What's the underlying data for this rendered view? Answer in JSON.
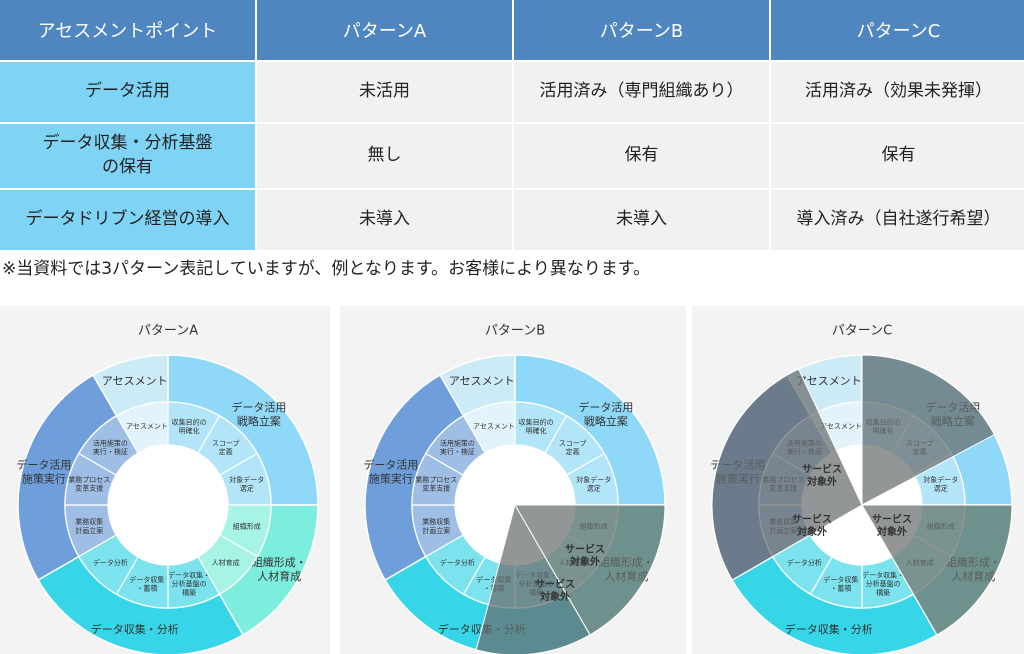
{
  "table": {
    "header": [
      "アセスメントポイント",
      "パターンA",
      "パターンB",
      "パターンC"
    ],
    "rows": [
      [
        "データ活用",
        "未活用",
        "活用済み（専門組織あり）",
        "活用済み（効果未発揮）"
      ],
      [
        "データ収集・分析基盤\nの保有",
        "無し",
        "保有",
        "保有"
      ],
      [
        "データドリブン経営の導入",
        "未導入",
        "未導入",
        "導入済み（自社遂行希望）"
      ]
    ]
  },
  "note": "※当資料では3パターン表記していますが、例となります。お客様により異なります。",
  "segments": {
    "outer": [
      "アセスメント",
      "データ活用\n戦略立案",
      "組織形成・\n人材育成",
      "データ収集・分析",
      "データ活用\n施策実行"
    ],
    "inner": [
      "アセスメント",
      "収集目的の\n明確化",
      "スコープ\n定義",
      "対象データ\n選定",
      "組織形成",
      "人材育成",
      "データ収集・\n分析基盤の\n構築",
      "データ収集\n・蓄積",
      "データ分析",
      "業務収集\n計画立案",
      "業務プロセス\n変革支援",
      "活用施策の\n実行・検証"
    ],
    "excluded_label": "サービス\n対象外"
  },
  "diagrams": [
    {
      "title": "パターンA"
    },
    {
      "title": "パターンB"
    },
    {
      "title": "パターンC"
    }
  ]
}
